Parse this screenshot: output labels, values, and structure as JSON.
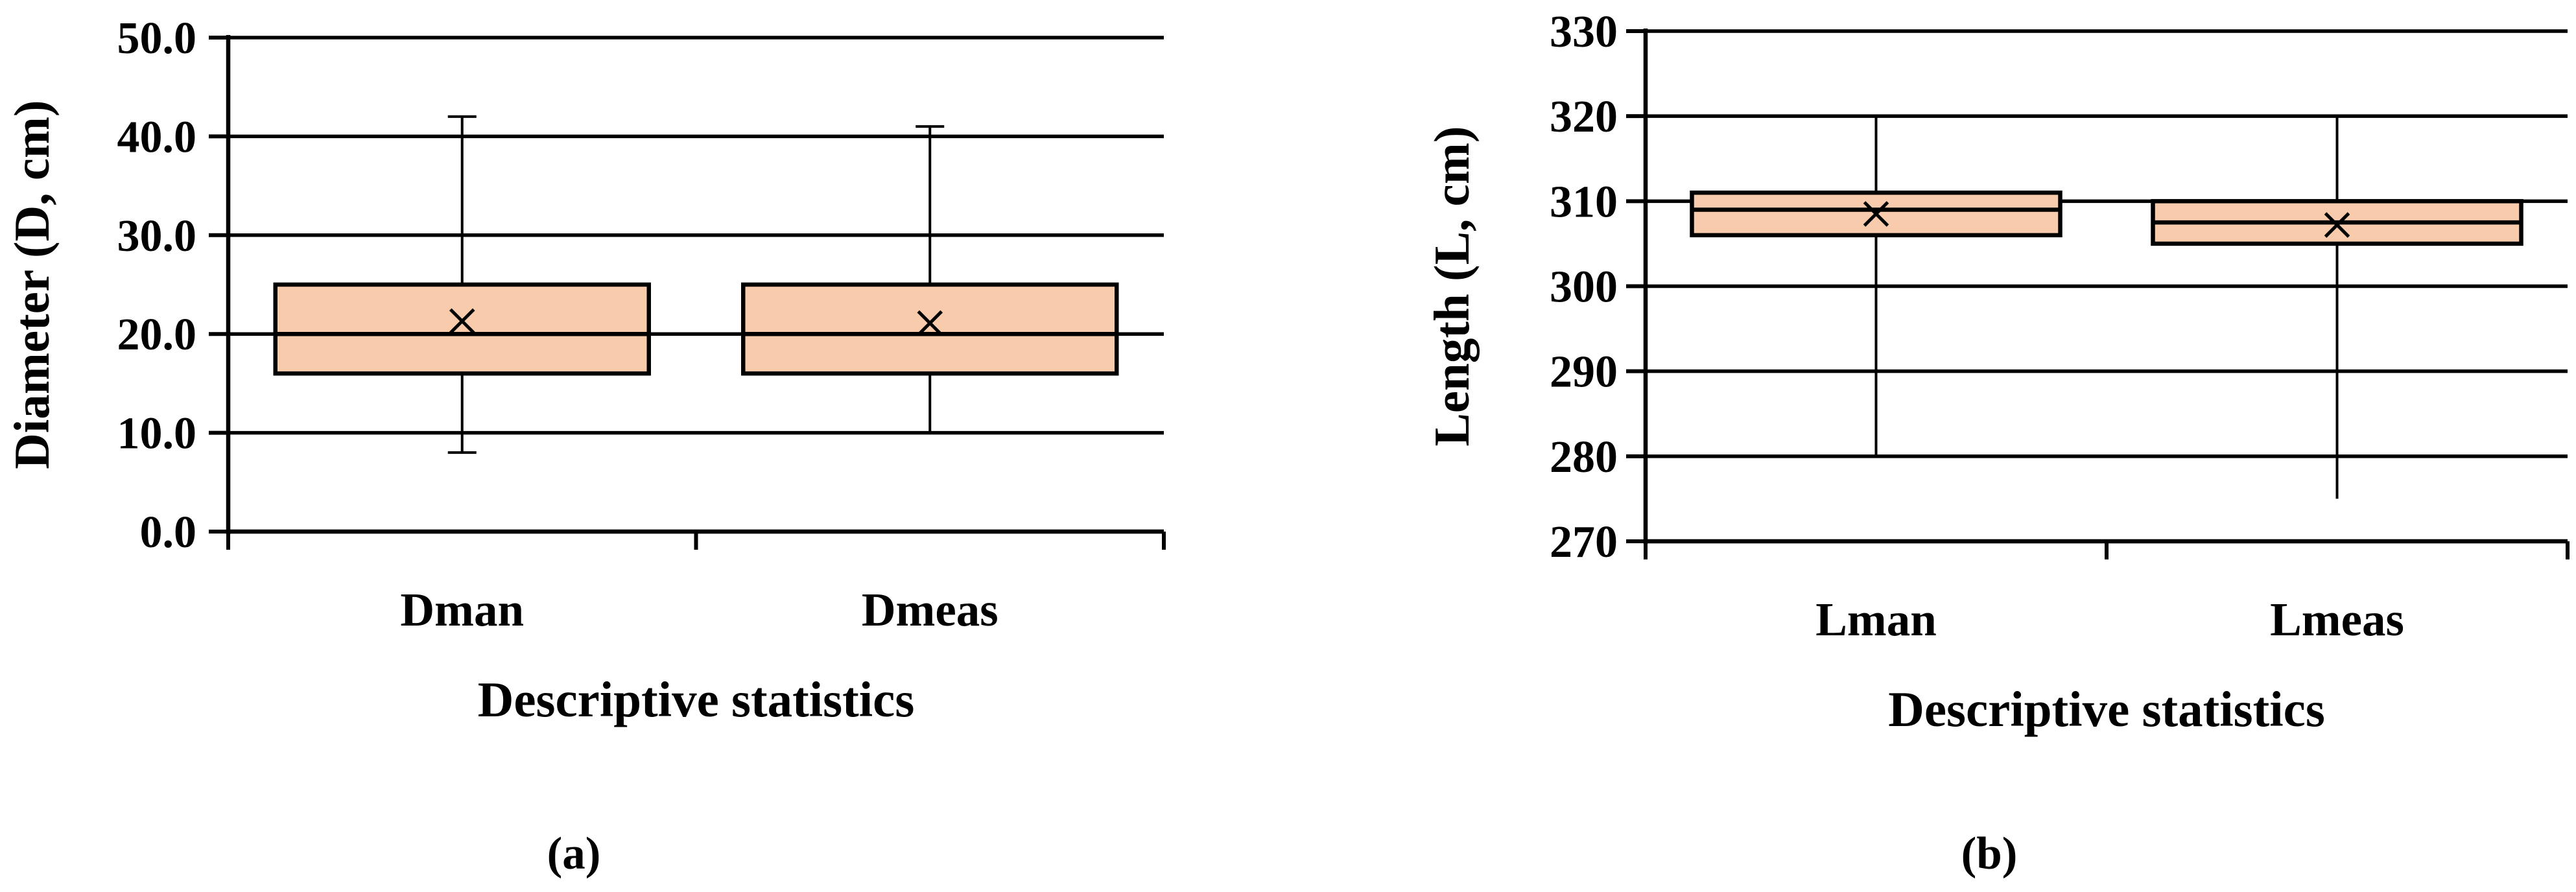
{
  "chart_data": [
    {
      "type": "box",
      "panel_label": "(a)",
      "xlabel": "Descriptive statistics",
      "ylabel": "Diameter (D, cm)",
      "ylim": [
        0,
        50
      ],
      "yticks": [
        0,
        10,
        20,
        30,
        40,
        50
      ],
      "ytick_labels": [
        "0.0",
        "10.0",
        "20.0",
        "30.0",
        "40.0",
        "50.0"
      ],
      "grid": true,
      "box_color": "#F8CBAD",
      "categories": [
        "Dman",
        "Dmeas"
      ],
      "boxes": [
        {
          "name": "Dman",
          "min": 8,
          "q1": 16,
          "median": 20,
          "q3": 25,
          "max": 42,
          "mean": 21.3
        },
        {
          "name": "Dmeas",
          "min": 10,
          "q1": 16,
          "median": 20,
          "q3": 25,
          "max": 41,
          "mean": 21.1
        }
      ]
    },
    {
      "type": "box",
      "panel_label": "(b)",
      "xlabel": "Descriptive statistics",
      "ylabel": "Length (L, cm)",
      "ylim": [
        270,
        330
      ],
      "yticks": [
        270,
        280,
        290,
        300,
        310,
        320,
        330
      ],
      "ytick_labels": [
        "270",
        "280",
        "290",
        "300",
        "310",
        "320",
        "330"
      ],
      "grid": true,
      "box_color": "#F8CBAD",
      "categories": [
        "Lman",
        "Lmeas"
      ],
      "boxes": [
        {
          "name": "Lman",
          "min": 280,
          "q1": 306,
          "median": 309,
          "q3": 311,
          "max": 320,
          "mean": 308.5
        },
        {
          "name": "Lmeas",
          "min": 275,
          "q1": 305,
          "median": 307.5,
          "q3": 310,
          "max": 320,
          "mean": 307.2
        }
      ]
    }
  ]
}
